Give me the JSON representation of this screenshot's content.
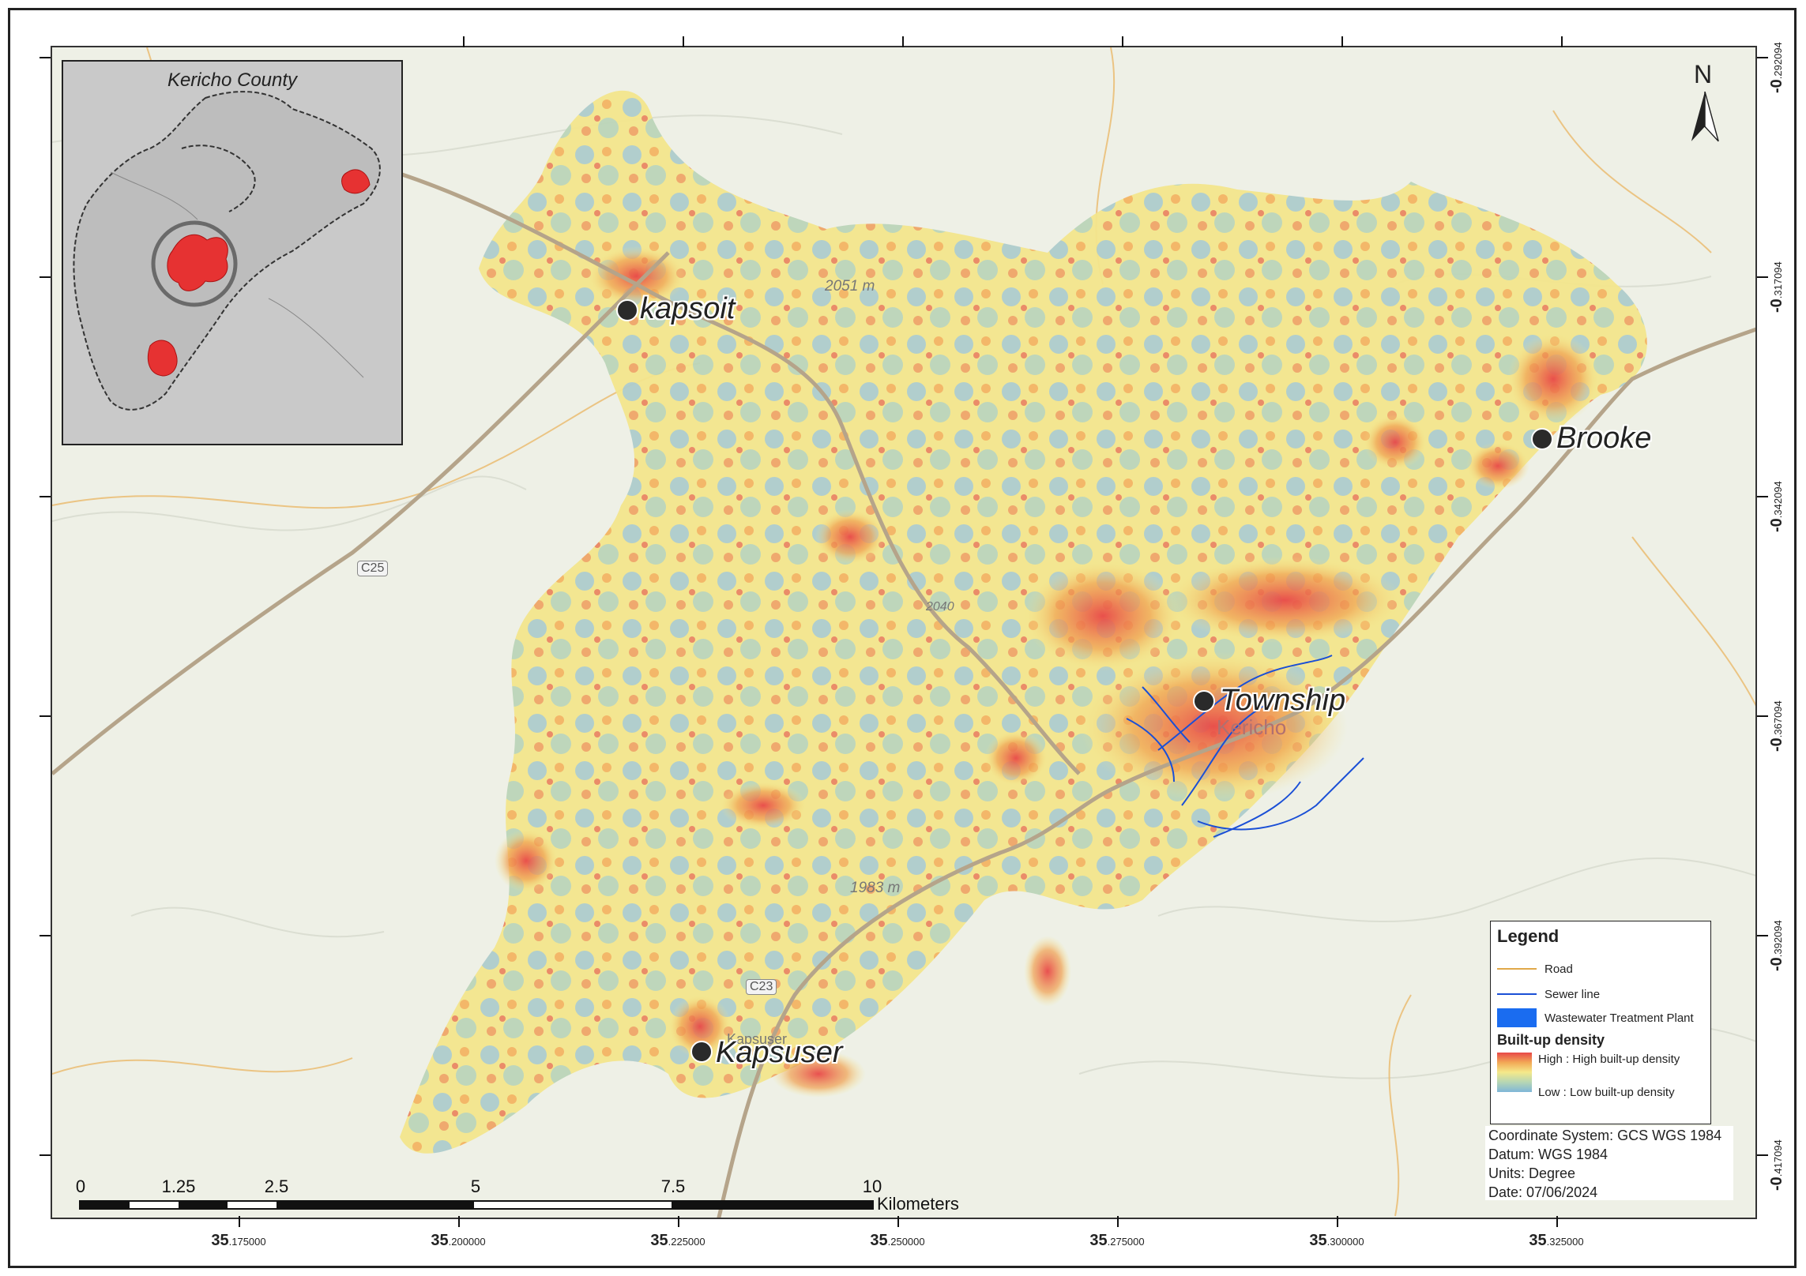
{
  "map": {
    "inset": {
      "title": "Kericho County"
    },
    "north_arrow": {
      "letter": "N"
    },
    "places": [
      {
        "name": "kapsoit"
      },
      {
        "name": "Brooke"
      },
      {
        "name": "Township"
      },
      {
        "name": "Kapsuser"
      }
    ],
    "minor_labels": {
      "town": "Kericho",
      "elev1": "2051 m",
      "elev2": "2040",
      "elev3": "1983 m",
      "kapsuser_faint": "Kapsuser",
      "road_c25": "C25",
      "road_c23": "C23"
    },
    "lon_ticks": [
      {
        "big": "35",
        "small": ".175000"
      },
      {
        "big": "35",
        "small": ".200000"
      },
      {
        "big": "35",
        "small": ".225000"
      },
      {
        "big": "35",
        "small": ".250000"
      },
      {
        "big": "35",
        "small": ".275000"
      },
      {
        "big": "35",
        "small": ".300000"
      },
      {
        "big": "35",
        "small": ".325000"
      }
    ],
    "lat_ticks": [
      {
        "big": "-0",
        "small": ".292094"
      },
      {
        "big": "-0",
        "small": ".317094"
      },
      {
        "big": "-0",
        "small": ".342094"
      },
      {
        "big": "-0",
        "small": ".367094"
      },
      {
        "big": "-0",
        "small": ".392094"
      },
      {
        "big": "-0",
        "small": ".417094"
      }
    ],
    "scale_bar": {
      "labels": [
        "0",
        "1.25",
        "2.5",
        "5",
        "7.5",
        "10"
      ],
      "unit": "Kilometers"
    }
  },
  "legend": {
    "title": "Legend",
    "items": [
      {
        "label": "Road",
        "color": "#e0a84a"
      },
      {
        "label": "Sewer line",
        "color": "#1a4fd6"
      },
      {
        "label": "Wastewater Treatment Plant",
        "color": "#1a6cf0"
      }
    ],
    "density_title": "Built-up density",
    "high_label": "High : High built-up density",
    "low_label": "Low : Low built-up density",
    "colors": {
      "high": "#e84848",
      "mid": "#f5e98a",
      "low": "#7fb6d8"
    }
  },
  "coordinate_info": {
    "system": "Coordinate System: GCS WGS 1984",
    "datum": "Datum: WGS 1984",
    "units": "Units: Degree",
    "date": "Date: 07/06/2024"
  }
}
